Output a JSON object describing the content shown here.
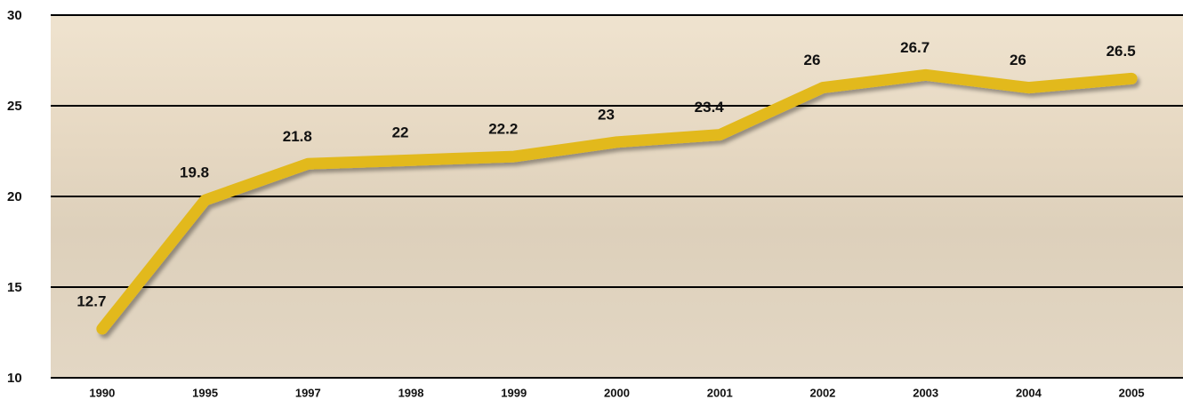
{
  "chart_data": {
    "type": "line",
    "categories": [
      "1990",
      "1995",
      "1997",
      "1998",
      "1999",
      "2000",
      "2001",
      "2002",
      "2003",
      "2004",
      "2005"
    ],
    "values": [
      12.7,
      19.8,
      21.8,
      22,
      22.2,
      23,
      23.4,
      26,
      26.7,
      26,
      26.5
    ],
    "color": "#e2b91e",
    "ylim": [
      10,
      30
    ],
    "yticks": [
      10,
      15,
      20,
      25,
      30
    ],
    "grid": true
  }
}
